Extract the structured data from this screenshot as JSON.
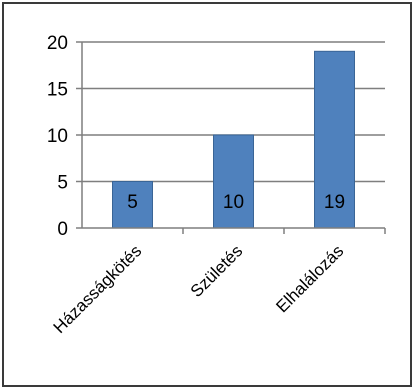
{
  "chart_data": {
    "type": "bar",
    "categories": [
      "Házasságkötés",
      "Születés",
      "Elhalálozás"
    ],
    "values": [
      5,
      10,
      19
    ],
    "data_labels": [
      "5",
      "10",
      "19"
    ],
    "ylim": [
      0,
      20
    ],
    "yticks": [
      0,
      5,
      10,
      15,
      20
    ],
    "ytick_labels": [
      "0",
      "5",
      "10",
      "15",
      "20"
    ],
    "title": "",
    "xlabel": "",
    "ylabel": "",
    "grid": true,
    "legend": "none",
    "colors": {
      "bar": "#4f81bd",
      "bar_edge": "#3a6596",
      "grid": "#7f7f7f",
      "axis": "#7f7f7f",
      "frame": "#3a3a3a"
    }
  }
}
